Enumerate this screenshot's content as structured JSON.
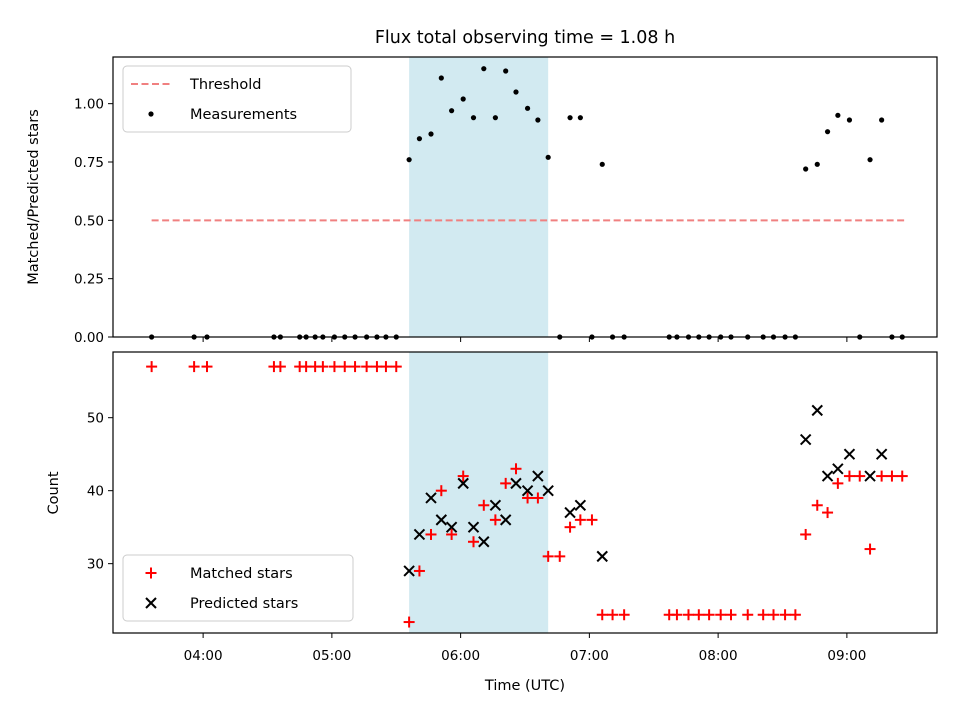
{
  "colors": {
    "threshold": "#f08080",
    "measurements": "#000000",
    "matched": "#ff0000",
    "predicted": "#000000",
    "shade": "#add8e6"
  },
  "chart_data": [
    {
      "type": "scatter",
      "title": "Flux total observing time = 1.08 h",
      "xlabel": "",
      "ylabel": "Matched/Predicted stars",
      "x_unit": "hours UTC",
      "xlim": [
        3.3,
        9.7
      ],
      "ylim": [
        0.0,
        1.2
      ],
      "yticks": [
        0.0,
        0.25,
        0.5,
        0.75,
        1.0
      ],
      "ytick_labels": [
        "0.00",
        "0.25",
        "0.50",
        "0.75",
        "1.00"
      ],
      "shaded_span": [
        5.6,
        6.68
      ],
      "legend": {
        "placement": "upper left",
        "entries": [
          "Threshold",
          "Measurements"
        ]
      },
      "series": [
        {
          "name": "Threshold",
          "style": "dashed-line",
          "x": [
            3.6,
            9.45
          ],
          "y": [
            0.5,
            0.5
          ]
        },
        {
          "name": "Measurements",
          "style": "dot",
          "x": [
            3.6,
            3.93,
            4.03,
            4.55,
            4.6,
            4.75,
            4.8,
            4.87,
            4.93,
            5.02,
            5.1,
            5.18,
            5.27,
            5.35,
            5.42,
            5.5,
            5.6,
            5.68,
            5.77,
            5.85,
            5.93,
            6.02,
            6.1,
            6.18,
            6.27,
            6.35,
            6.43,
            6.52,
            6.6,
            6.68,
            6.77,
            6.85,
            6.93,
            7.02,
            7.1,
            7.18,
            7.27,
            7.62,
            7.68,
            7.77,
            7.85,
            7.93,
            8.02,
            8.1,
            8.23,
            8.35,
            8.43,
            8.52,
            8.6,
            8.68,
            8.77,
            8.85,
            8.93,
            9.02,
            9.1,
            9.18,
            9.27,
            9.35,
            9.43
          ],
          "y": [
            0,
            0,
            0,
            0,
            0,
            0,
            0,
            0,
            0,
            0,
            0,
            0,
            0,
            0,
            0,
            0,
            0.76,
            0.85,
            0.87,
            1.11,
            0.97,
            1.02,
            0.94,
            1.15,
            0.94,
            1.14,
            1.05,
            0.98,
            0.93,
            0.77,
            0,
            0.94,
            0.94,
            0,
            0.74,
            0,
            0,
            0,
            0,
            0,
            0,
            0,
            0,
            0,
            0,
            0,
            0,
            0,
            0,
            0.72,
            0.74,
            0.88,
            0.95,
            0.93,
            0,
            0.76,
            0.93,
            0,
            0
          ]
        }
      ]
    },
    {
      "type": "scatter",
      "title": "",
      "xlabel": "Time (UTC)",
      "ylabel": "Count",
      "x_unit": "hours UTC",
      "xlim": [
        3.3,
        9.7
      ],
      "ylim": [
        20.5,
        59
      ],
      "xticks": [
        4,
        5,
        6,
        7,
        8,
        9
      ],
      "xtick_labels": [
        "04:00",
        "05:00",
        "06:00",
        "07:00",
        "08:00",
        "09:00"
      ],
      "yticks": [
        30,
        40,
        50
      ],
      "ytick_labels": [
        "30",
        "40",
        "50"
      ],
      "shaded_span": [
        5.6,
        6.68
      ],
      "legend": {
        "placement": "lower left",
        "entries": [
          "Matched stars",
          "Predicted stars"
        ]
      },
      "series": [
        {
          "name": "Matched stars",
          "style": "plus",
          "x": [
            3.6,
            3.93,
            4.03,
            4.55,
            4.6,
            4.75,
            4.8,
            4.87,
            4.93,
            5.02,
            5.1,
            5.18,
            5.27,
            5.35,
            5.42,
            5.5,
            5.6,
            5.68,
            5.77,
            5.85,
            5.93,
            6.02,
            6.1,
            6.18,
            6.27,
            6.35,
            6.43,
            6.52,
            6.6,
            6.68,
            6.77,
            6.85,
            6.93,
            7.02,
            7.1,
            7.18,
            7.27,
            7.62,
            7.68,
            7.77,
            7.85,
            7.93,
            8.02,
            8.1,
            8.23,
            8.35,
            8.43,
            8.52,
            8.6,
            8.68,
            8.77,
            8.85,
            8.93,
            9.02,
            9.1,
            9.18,
            9.27,
            9.35,
            9.43
          ],
          "y": [
            57,
            57,
            57,
            57,
            57,
            57,
            57,
            57,
            57,
            57,
            57,
            57,
            57,
            57,
            57,
            57,
            22,
            29,
            34,
            40,
            34,
            42,
            33,
            38,
            36,
            41,
            43,
            39,
            39,
            31,
            31,
            35,
            36,
            36,
            23,
            23,
            23,
            23,
            23,
            23,
            23,
            23,
            23,
            23,
            23,
            23,
            23,
            23,
            23,
            34,
            38,
            37,
            41,
            42,
            42,
            32,
            42,
            42,
            42
          ]
        },
        {
          "name": "Predicted stars",
          "style": "x",
          "x": [
            5.6,
            5.68,
            5.77,
            5.85,
            5.93,
            6.02,
            6.1,
            6.18,
            6.27,
            6.35,
            6.43,
            6.52,
            6.6,
            6.68,
            6.85,
            6.93,
            7.1,
            8.68,
            8.77,
            8.85,
            8.93,
            9.02,
            9.18,
            9.27
          ],
          "y": [
            29,
            34,
            39,
            36,
            35,
            41,
            35,
            33,
            38,
            36,
            41,
            40,
            42,
            40,
            37,
            38,
            31,
            47,
            51,
            42,
            43,
            45,
            42,
            45
          ]
        }
      ]
    }
  ]
}
